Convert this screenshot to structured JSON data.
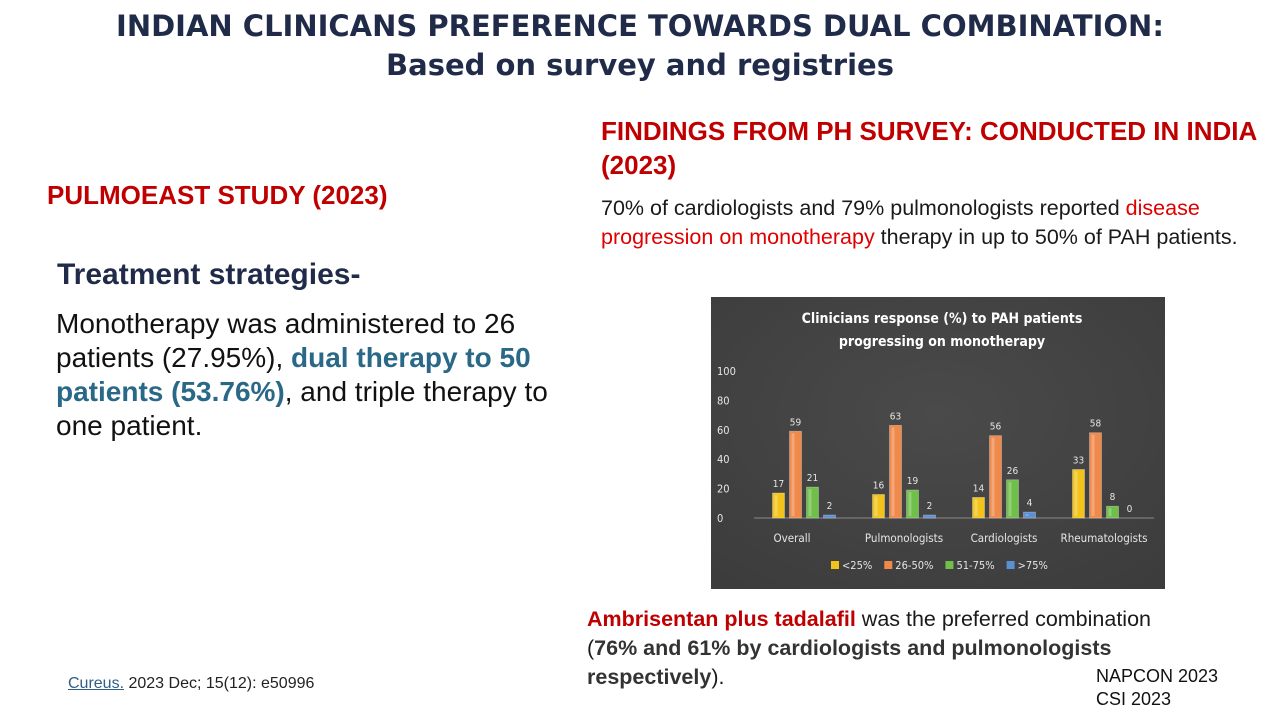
{
  "title": {
    "line1": "INDIAN CLINICANS PREFERENCE TOWARDS DUAL COMBINATION:",
    "line2": "Based on survey and registries"
  },
  "left": {
    "study_heading": "PULMOEAST STUDY (2023)",
    "strategies_heading": "Treatment strategies-",
    "body_part1": "Monotherapy was administered to 26 patients (27.95%), ",
    "body_highlight": "dual therapy to 50 patients (53.76%)",
    "body_part2": ", and triple therapy to one patient."
  },
  "right": {
    "survey_heading": "FINDINGS FROM PH SURVEY: CONDUCTED IN INDIA (2023)",
    "survey_part1": "70% of cardiologists and 79% pulmonologists reported ",
    "survey_red": "disease progression on monotherapy",
    "survey_part2": " therapy in up to 50% of PAH patients.",
    "ambri_red": "Ambrisentan plus tadalafil",
    "ambri_part1": " was the preferred combination (",
    "ambri_bold": "76% and 61% by cardiologists and pulmonologists respectively",
    "ambri_part2": ")."
  },
  "citation": {
    "link": "Cureus.",
    "rest": " 2023 Dec; 15(12): e50996"
  },
  "conferences": {
    "line1": "NAPCON 2023",
    "line2": "CSI 2023"
  },
  "chart_data": {
    "type": "bar",
    "title": "Clinicians response (%) to PAH patients progressing on monotherapy",
    "title_line1": "Clinicians response (%) to PAH patients",
    "title_line2": "progressing on monotherapy",
    "categories": [
      "Overall",
      "Pulmonologists",
      "Cardiologists",
      "Rheumatologists"
    ],
    "series": [
      {
        "name": "<25%",
        "values": [
          17,
          16,
          14,
          33
        ],
        "color": "#f2c41b"
      },
      {
        "name": "26-50%",
        "values": [
          59,
          63,
          56,
          58
        ],
        "color": "#f08a4b"
      },
      {
        "name": "51-75%",
        "values": [
          21,
          19,
          26,
          8
        ],
        "color": "#6fbf4a"
      },
      {
        "name": ">75%",
        "values": [
          2,
          2,
          4,
          0
        ],
        "color": "#5b8fd1"
      }
    ],
    "ylim": [
      0,
      100
    ],
    "yticks": [
      0,
      20,
      40,
      60,
      80,
      100
    ],
    "legend": "bottom",
    "grid": false,
    "background": "#3c3c3c"
  }
}
